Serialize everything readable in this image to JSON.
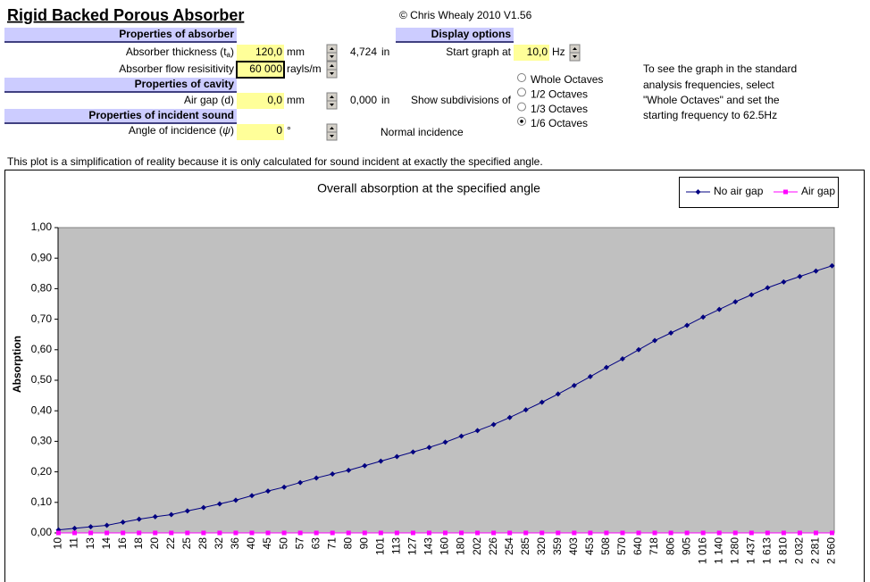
{
  "header": {
    "title": "Rigid Backed Porous Absorber",
    "copyright": "© Chris Whealy 2010  V1.56"
  },
  "absorber": {
    "heading": "Properties of absorber",
    "thickness": {
      "label": [
        "Absorber thickness (t",
        "a",
        ")"
      ],
      "value": "120,0",
      "unit": "mm",
      "inches": "4,724",
      "inch_unit": "in"
    },
    "resistivity": {
      "label": "Absorber flow resisitivity",
      "value": "60 000",
      "unit": "rayls/m"
    }
  },
  "cavity": {
    "heading": "Properties of cavity",
    "air_gap": {
      "label": "Air gap (d)",
      "value": "0,0",
      "unit": "mm",
      "inches": "0,000",
      "inch_unit": "in"
    }
  },
  "incident": {
    "heading": "Properties of incident sound",
    "angle": {
      "label": [
        "Angle of incidence (",
        "ψ",
        ")"
      ],
      "value": "0",
      "unit": "°",
      "note": "Normal incidence"
    }
  },
  "display": {
    "heading": "Display options",
    "start": {
      "label": "Start graph at",
      "value": "10,0",
      "unit": "Hz"
    },
    "subdivisions": {
      "label": "Show subdivisions of",
      "options": [
        "Whole Octaves",
        "1/2 Octaves",
        "1/3 Octaves",
        "1/6 Octaves"
      ],
      "selected": 3
    }
  },
  "hint": [
    "To see the graph in the standard",
    "analysis frequencies, select",
    "\"Whole Octaves\" and set the",
    "starting frequency to 62.5Hz"
  ],
  "disclaimer": "This plot is a simplification of reality because it is only calculated for sound incident at exactly the specified angle.",
  "chart_data": {
    "type": "line",
    "title": "Overall absorption at the specified angle",
    "y_label": "Absorption",
    "categories": [
      "10",
      "11",
      "13",
      "14",
      "16",
      "18",
      "20",
      "22",
      "25",
      "28",
      "32",
      "36",
      "40",
      "45",
      "50",
      "57",
      "63",
      "71",
      "80",
      "90",
      "101",
      "113",
      "127",
      "143",
      "160",
      "180",
      "202",
      "226",
      "254",
      "285",
      "320",
      "359",
      "403",
      "453",
      "508",
      "570",
      "640",
      "718",
      "806",
      "905",
      "1 016",
      "1 140",
      "1 280",
      "1 437",
      "1 613",
      "1 810",
      "2 032",
      "2 281",
      "2 560"
    ],
    "series": [
      {
        "name": "No air gap",
        "color": "#000080",
        "marker": "diamond",
        "values": [
          0.01,
          0.015,
          0.02,
          0.025,
          0.035,
          0.045,
          0.053,
          0.06,
          0.072,
          0.083,
          0.095,
          0.107,
          0.122,
          0.137,
          0.15,
          0.165,
          0.18,
          0.193,
          0.205,
          0.22,
          0.235,
          0.25,
          0.265,
          0.28,
          0.297,
          0.317,
          0.335,
          0.355,
          0.378,
          0.403,
          0.428,
          0.455,
          0.483,
          0.512,
          0.542,
          0.57,
          0.6,
          0.63,
          0.655,
          0.68,
          0.707,
          0.732,
          0.757,
          0.78,
          0.803,
          0.822,
          0.84,
          0.858,
          0.875
        ]
      },
      {
        "name": "Air gap",
        "color": "#ff00ff",
        "marker": "square",
        "values": [
          0,
          0,
          0,
          0,
          0,
          0,
          0,
          0,
          0,
          0,
          0,
          0,
          0,
          0,
          0,
          0,
          0,
          0,
          0,
          0,
          0,
          0,
          0,
          0,
          0,
          0,
          0,
          0,
          0,
          0,
          0,
          0,
          0,
          0,
          0,
          0,
          0,
          0,
          0,
          0,
          0,
          0,
          0,
          0,
          0,
          0,
          0,
          0,
          0
        ]
      }
    ],
    "ylim": [
      0,
      1
    ],
    "yticks": [
      {
        "value": 0,
        "label": "0,00"
      },
      {
        "value": 0.1,
        "label": "0,10"
      },
      {
        "value": 0.2,
        "label": "0,20"
      },
      {
        "value": 0.3,
        "label": "0,30"
      },
      {
        "value": 0.4,
        "label": "0,40"
      },
      {
        "value": 0.5,
        "label": "0,50"
      },
      {
        "value": 0.6,
        "label": "0,60"
      },
      {
        "value": 0.7,
        "label": "0,70"
      },
      {
        "value": 0.8,
        "label": "0,80"
      },
      {
        "value": 0.9,
        "label": "0,90"
      },
      {
        "value": 1,
        "label": "1,00"
      }
    ],
    "grid": false,
    "legend": "top-right",
    "plot_color": "#c0c0c0"
  }
}
